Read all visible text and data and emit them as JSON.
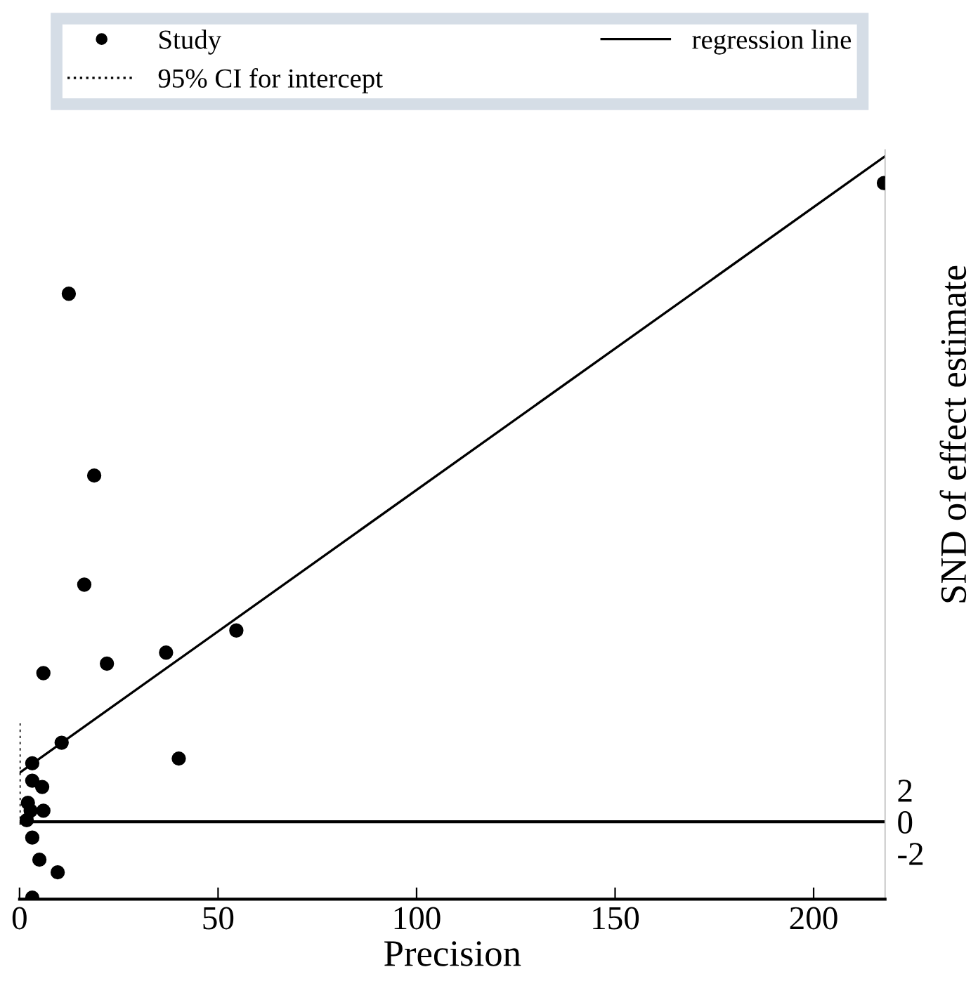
{
  "chart_data": {
    "type": "scatter",
    "xlabel": "Precision",
    "ylabel": "SND of effect estimate",
    "xlim": [
      0,
      218
    ],
    "xticks": [
      0,
      50,
      100,
      150,
      200
    ],
    "ylim": [
      -4.9,
      42.5
    ],
    "yticks": [
      2,
      0,
      -2
    ],
    "series": [
      {
        "name": "Study",
        "color": "#000000",
        "marker": "circle",
        "x": [
          217.7,
          12.4,
          18.8,
          16.3,
          6.0,
          22.0,
          36.9,
          54.6,
          10.6,
          40.1,
          3.2,
          3.2,
          5.7,
          2.1,
          6.0,
          2.8,
          1.8,
          3.2,
          5.0,
          9.6,
          3.2
        ],
        "values": [
          40.4,
          33.4,
          21.9,
          15.0,
          9.4,
          10.0,
          10.7,
          12.1,
          5.0,
          4.0,
          3.7,
          2.6,
          2.2,
          1.2,
          0.7,
          0.7,
          0.1,
          -1.0,
          -2.4,
          -3.2,
          -4.8
        ]
      },
      {
        "name": "regression line",
        "type": "line",
        "color": "#000000",
        "line_style": "solid",
        "x": [
          0,
          218
        ],
        "values": [
          3.1,
          42.1
        ]
      },
      {
        "name": "95% CI for intercept",
        "type": "line",
        "color": "#000000",
        "line_style": "dotted",
        "x": [
          0,
          0
        ],
        "values": [
          -0.2,
          6.3
        ]
      }
    ],
    "ref_lines": [
      {
        "axis": "y",
        "value": 0,
        "color": "#000000",
        "line_style": "solid"
      }
    ],
    "legend": "top",
    "grid": false
  }
}
